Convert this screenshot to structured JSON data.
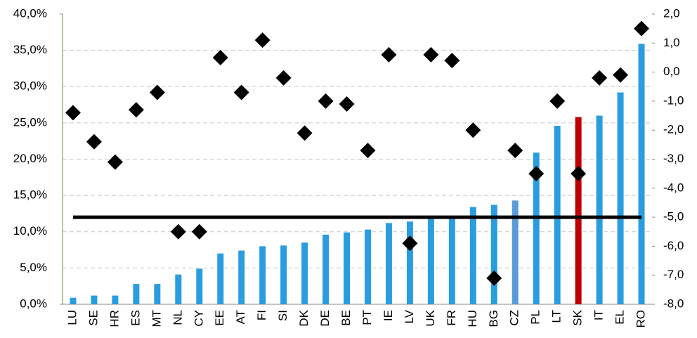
{
  "chart_data": {
    "type": "bar",
    "categories": [
      "LU",
      "SE",
      "HR",
      "ES",
      "MT",
      "NL",
      "CY",
      "EE",
      "AT",
      "FI",
      "SI",
      "DK",
      "DE",
      "BE",
      "PT",
      "IE",
      "LV",
      "UK",
      "FR",
      "HU",
      "BG",
      "CZ",
      "PL",
      "LT",
      "SK",
      "IT",
      "EL",
      "RO"
    ],
    "series": [
      {
        "type": "bar",
        "color": "#2a9de0",
        "colors": [
          "#2a9de0",
          "#2a9de0",
          "#2a9de0",
          "#2a9de0",
          "#2a9de0",
          "#2a9de0",
          "#2a9de0",
          "#2a9de0",
          "#2a9de0",
          "#2a9de0",
          "#2a9de0",
          "#2a9de0",
          "#2a9de0",
          "#2a9de0",
          "#2a9de0",
          "#2a9de0",
          "#2a9de0",
          "#2a9de0",
          "#2a9de0",
          "#2a9de0",
          "#2a9de0",
          "#5b9bd5",
          "#2a9de0",
          "#2a9de0",
          "#c00000",
          "#2a9de0",
          "#2a9de0",
          "#2a9de0"
        ],
        "values": [
          0.9,
          1.2,
          1.2,
          2.8,
          2.8,
          4.1,
          4.9,
          7.0,
          7.4,
          8.0,
          8.1,
          8.5,
          9.6,
          9.9,
          10.3,
          11.2,
          11.4,
          12.2,
          12.2,
          13.4,
          13.7,
          14.3,
          20.9,
          24.6,
          25.8,
          26.0,
          29.2,
          35.9
        ]
      },
      {
        "type": "scatter",
        "axis": "y2",
        "marker": "diamond",
        "color": "#000000",
        "values": [
          -1.4,
          -2.4,
          -3.1,
          -1.3,
          -0.7,
          -5.5,
          -5.5,
          0.5,
          -0.7,
          1.1,
          -0.2,
          -2.1,
          -1.0,
          -1.1,
          -2.7,
          0.6,
          -5.9,
          0.6,
          0.4,
          -2.0,
          -7.1,
          -2.7,
          -3.5,
          -1.0,
          -3.5,
          -0.2,
          -0.1,
          1.5
        ]
      }
    ],
    "reference_line": {
      "value": -5.0,
      "axis": "y2",
      "color": "#000000"
    },
    "ylim": [
      0,
      40
    ],
    "yticks": [
      {
        "value": 0,
        "label": "0,0%"
      },
      {
        "value": 5,
        "label": "5,0%"
      },
      {
        "value": 10,
        "label": "10,0%"
      },
      {
        "value": 15,
        "label": "15,0%"
      },
      {
        "value": 20,
        "label": "20,0%"
      },
      {
        "value": 25,
        "label": "25,0%"
      },
      {
        "value": 30,
        "label": "30,0%"
      },
      {
        "value": 35,
        "label": "35,0%"
      },
      {
        "value": 40,
        "label": "40,0%"
      }
    ],
    "y2lim": [
      -8,
      2
    ],
    "y2ticks": [
      {
        "value": -8,
        "label": "-8,0"
      },
      {
        "value": -7,
        "label": "-7,0"
      },
      {
        "value": -6,
        "label": "-6,0"
      },
      {
        "value": -5,
        "label": "-5,0"
      },
      {
        "value": -4,
        "label": "-4,0"
      },
      {
        "value": -3,
        "label": "-3,0"
      },
      {
        "value": -2,
        "label": "-2,0"
      },
      {
        "value": -1,
        "label": "-1,0"
      },
      {
        "value": 0,
        "label": "0,0"
      },
      {
        "value": 1,
        "label": "1,0"
      },
      {
        "value": 2,
        "label": "2,0"
      }
    ],
    "grid": true
  }
}
